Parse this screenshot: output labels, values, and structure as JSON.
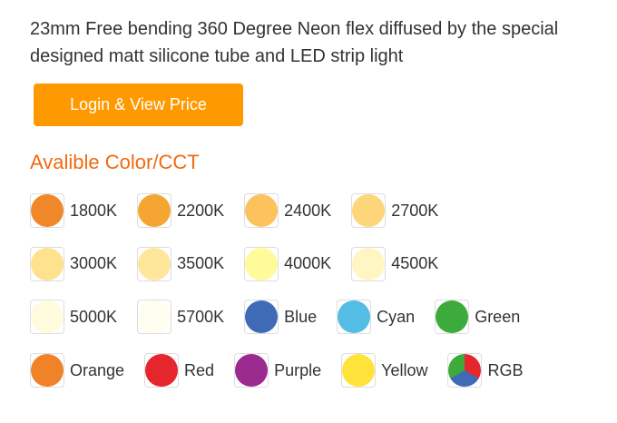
{
  "product": {
    "title": "23mm Free bending 360 Degree Neon flex diffused by the special designed matt silicone tube and LED strip light",
    "button": "Login & View Price",
    "section_title": "Avalible Color/CCT",
    "color_rows": [
      [
        {
          "label": "1800K",
          "color": "#f0882a"
        },
        {
          "label": "2200K",
          "color": "#f5a632"
        },
        {
          "label": "2400K",
          "color": "#fcc35c"
        },
        {
          "label": "2700K",
          "color": "#fdd57a"
        }
      ],
      [
        {
          "label": "3000K",
          "color": "#fee28d"
        },
        {
          "label": "3500K",
          "color": "#fee69a"
        },
        {
          "label": "4000K",
          "color": "#fffb9a"
        },
        {
          "label": "4500K",
          "color": "#fff6c4"
        }
      ],
      [
        {
          "label": "5000K",
          "color": "#fffbdc"
        },
        {
          "label": "5700K",
          "color": "#fffcf0"
        },
        {
          "label": "Blue",
          "color": "#3f6bb6"
        },
        {
          "label": "Cyan",
          "color": "#53bde6"
        },
        {
          "label": "Green",
          "color": "#3cab3c"
        }
      ],
      [
        {
          "label": "Orange",
          "color": "#f08227"
        },
        {
          "label": "Red",
          "color": "#e5262d"
        },
        {
          "label": "Purple",
          "color": "#9b2a8e"
        },
        {
          "label": "Yellow",
          "color": "#ffe23a"
        },
        {
          "label": "RGB",
          "color": "conic-gradient(#e5262d 0deg 120deg, #3f6bb6 120deg 240deg, #3cab3c 240deg 360deg)"
        }
      ]
    ]
  }
}
